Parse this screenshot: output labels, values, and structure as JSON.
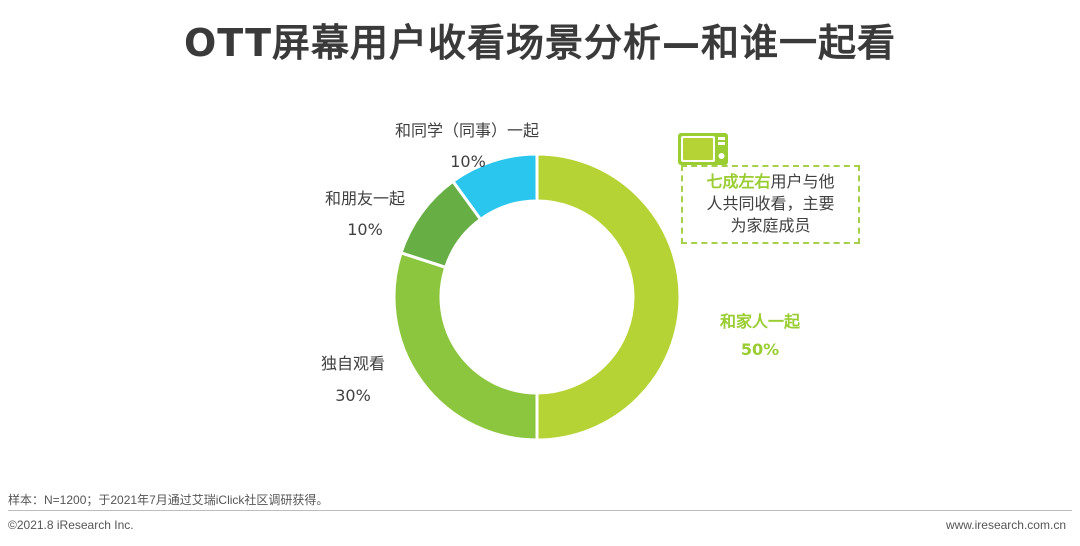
{
  "title": "OTT屏幕用户收看场景分析—和谁一起看",
  "chart_data": {
    "type": "pie",
    "variant": "donut",
    "title": "OTT屏幕用户收看场景分析—和谁一起看",
    "slices": [
      {
        "label": "和家人一起",
        "value": 50,
        "value_label": "50%",
        "color": "#b5d334"
      },
      {
        "label": "独自观看",
        "value": 30,
        "value_label": "30%",
        "color": "#8cc63f"
      },
      {
        "label": "和朋友一起",
        "value": 10,
        "value_label": "10%",
        "color": "#67ae44"
      },
      {
        "label": "和同学（同事）一起",
        "value": 10,
        "value_label": "10%",
        "color": "#2ac6ee"
      }
    ]
  },
  "callout": {
    "highlight": "七成左右",
    "line1_rest": "用户与他",
    "line2": "人共同收看，主要",
    "line3": "为家庭成员"
  },
  "footer": {
    "footnote": "样本：N=1200；于2021年7月通过艾瑞iClick社区调研获得。",
    "copyright": "©2021.8 iResearch Inc.",
    "website": "www.iresearch.com.cn"
  },
  "colors": {
    "accent": "#9acd32",
    "callout_border": "#a6cf4a"
  }
}
